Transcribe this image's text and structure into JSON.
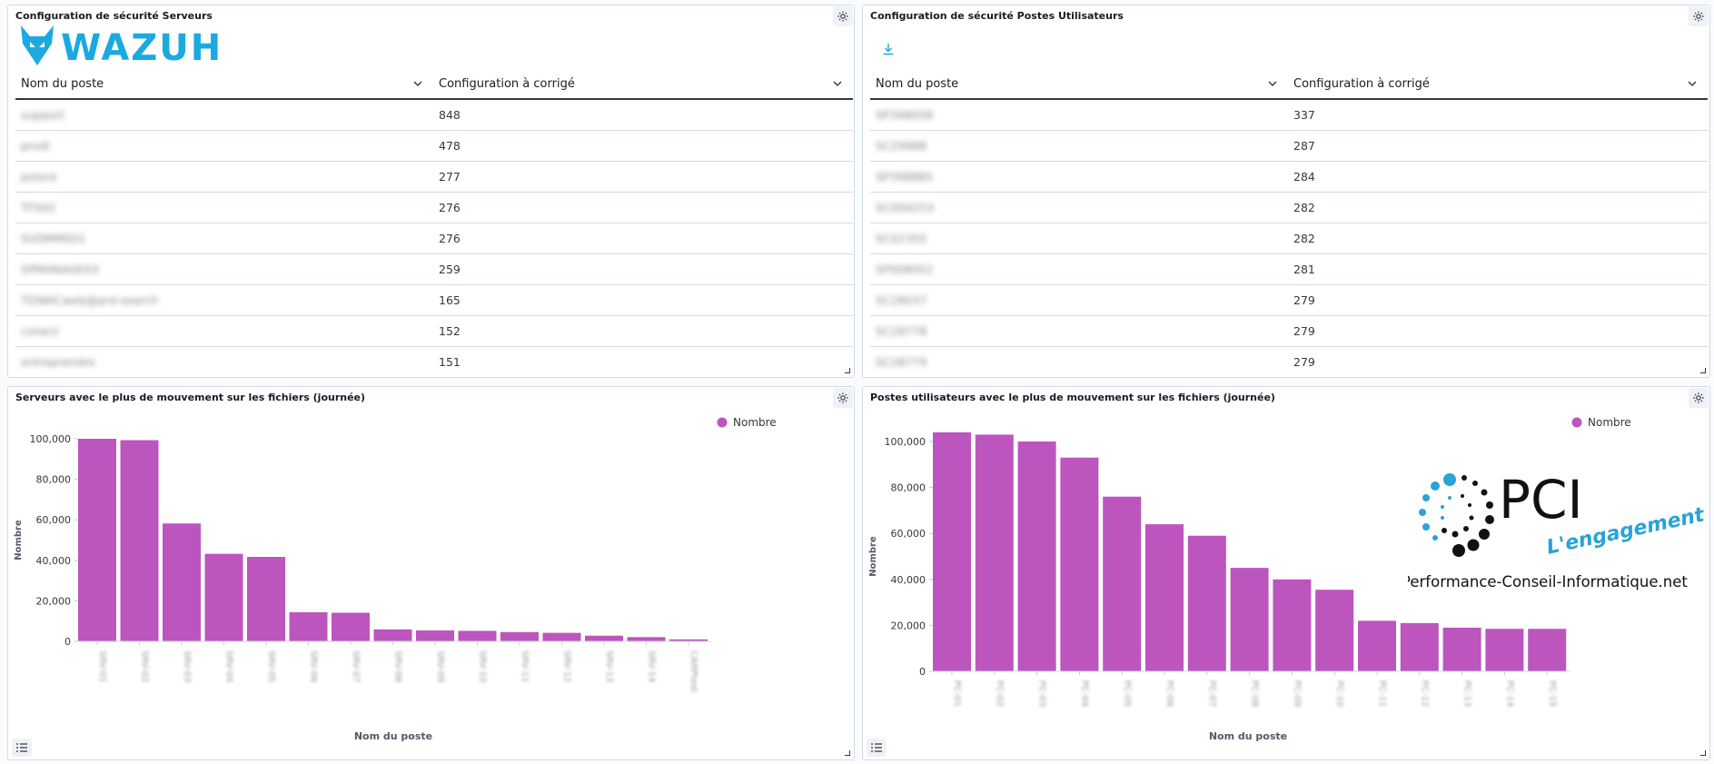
{
  "panels": {
    "servers_config": {
      "title": "Configuration de sécurité Serveurs",
      "columns": [
        "Nom du poste",
        "Configuration à corrigé"
      ],
      "rows": [
        {
          "name": "support",
          "value": "848"
        },
        {
          "name": "prodi",
          "value": "478"
        },
        {
          "name": "pstore",
          "value": "277"
        },
        {
          "name": "TFS02",
          "value": "276"
        },
        {
          "name": "SVDMMS01",
          "value": "276"
        },
        {
          "name": "SPMANAGE03",
          "value": "259"
        },
        {
          "name": "TDWACweb@prd-search",
          "value": "165"
        },
        {
          "name": "conect",
          "value": "152"
        },
        {
          "name": "entreprendre",
          "value": "151"
        }
      ]
    },
    "users_config": {
      "title": "Configuration de sécurité Postes Utilisateurs",
      "columns": [
        "Nom du poste",
        "Configuration à corrigé"
      ],
      "rows": [
        {
          "name": "SP398058",
          "value": "337"
        },
        {
          "name": "SC29988",
          "value": "287"
        },
        {
          "name": "SP398885",
          "value": "284"
        },
        {
          "name": "SC004253",
          "value": "282"
        },
        {
          "name": "SC02355",
          "value": "282"
        },
        {
          "name": "SP008052",
          "value": "281"
        },
        {
          "name": "SC28037",
          "value": "279"
        },
        {
          "name": "SC28778",
          "value": "279"
        },
        {
          "name": "SC28779",
          "value": "279"
        }
      ]
    },
    "servers_chart": {
      "title": "Serveurs avec le plus de mouvement sur les fichiers (journée)"
    },
    "users_chart": {
      "title": "Postes utilisateurs avec le plus de mouvement sur les fichiers (journée)"
    }
  },
  "logos": {
    "wazuh": "WAZUH",
    "pci_main": "PCI",
    "pci_tagline": "L'engagement",
    "pci_url": "Performance-Conseil-Informatique.net"
  },
  "colors": {
    "bar": "#bd55bf",
    "accent": "#1ba9e0",
    "text": "#343741"
  },
  "chart_data": [
    {
      "type": "bar",
      "xlabel": "Nom du poste",
      "ylabel": "Nombre",
      "legend": "top-right",
      "ylim": [
        0,
        100000
      ],
      "yticks": [
        "0",
        "20,000",
        "40,000",
        "60,000",
        "80,000",
        "100,000"
      ],
      "series": [
        {
          "name": "Nombre",
          "values": [
            100000,
            99300,
            58200,
            43200,
            41700,
            14400,
            14100,
            5900,
            5400,
            5200,
            4600,
            4200,
            2800,
            2100,
            1000
          ]
        }
      ],
      "categories": [
        "SRV-01",
        "SRV-02",
        "SRV-03",
        "SRV-04",
        "SRV-05",
        "SRV-06",
        "SRV-07",
        "SRV-08",
        "SRV-09",
        "SRV-10",
        "SRV-11",
        "SRV-12",
        "SRV-13",
        "SRV-14",
        "CARPtest"
      ]
    },
    {
      "type": "bar",
      "xlabel": "Nom du poste",
      "ylabel": "Nombre",
      "legend": "top-right",
      "ylim": [
        0,
        100000
      ],
      "yticks": [
        "0",
        "20,000",
        "40,000",
        "60,000",
        "80,000",
        "100,000"
      ],
      "series": [
        {
          "name": "Nombre",
          "values": [
            104000,
            103000,
            100000,
            93000,
            76000,
            64000,
            59000,
            45000,
            40000,
            35500,
            22000,
            21000,
            19000,
            18500,
            18500
          ]
        }
      ],
      "categories": [
        "PC-01",
        "PC-02",
        "PC-03",
        "PC-04",
        "PC-05",
        "PC-06",
        "PC-07",
        "PC-08",
        "PC-09",
        "PC-10",
        "PC-11",
        "PC-12",
        "PC-13",
        "PC-14",
        "PC-15"
      ]
    }
  ]
}
